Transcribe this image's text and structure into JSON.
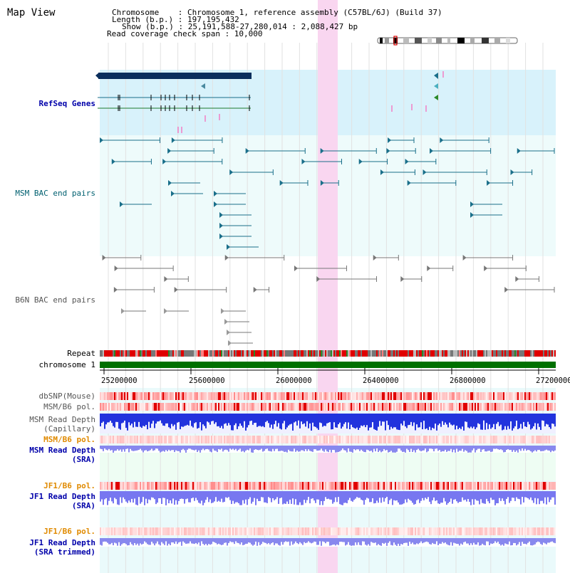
{
  "map_title": "Map View",
  "info": {
    "line1": "Chromosome    : Chromosome 1, reference assembly (C57BL/6J) (Build 37)",
    "line2": "Length (b.p.) : 197,195,432",
    "line3": "Show (b.p.) : 25,191,588-27,280,014 : 2,088,427 bp",
    "line4": "Read coverage check span : 10,000"
  },
  "tracks": {
    "refseq": "RefSeq Genes",
    "msm_bac": "MSM BAC end pairs",
    "b6n_bac": "B6N BAC end pairs",
    "repeat": "Repeat",
    "chromosome": "chromosome 1",
    "dbsnp": "dbSNP(Mouse)",
    "msm_b6_pol_1": "MSM/B6 pol.",
    "msm_read_depth_cap_1": "MSM Read Depth",
    "msm_read_depth_cap_2": "(Capillary)",
    "msm_b6_pol_2": "MSM/B6 pol.",
    "msm_read_depth_sra_1": "MSM Read Depth",
    "msm_read_depth_sra_2": "(SRA)",
    "jf1_b6_pol_1": "JF1/B6 pol.",
    "jf1_read_depth_sra_1": "JF1 Read Depth",
    "jf1_read_depth_sra_2": "(SRA)",
    "jf1_b6_pol_2": "JF1/B6 pol.",
    "jf1_read_depth_trim_1": "JF1 Read Depth",
    "jf1_read_depth_trim_2": "(SRA trimmed)"
  },
  "axis_ticks": [
    "25200000",
    "25600000",
    "26000000",
    "26400000",
    "26800000",
    "27200000"
  ],
  "colors": {
    "refseq_bg": "#d8f2fb",
    "bac_bg": "#eefbfb",
    "highlight": "#f9d6f0",
    "teal_feature": "#1a6f8a",
    "chromosome": "#007000",
    "label_blue": "#0000aa",
    "label_orange": "#e08a00"
  }
}
